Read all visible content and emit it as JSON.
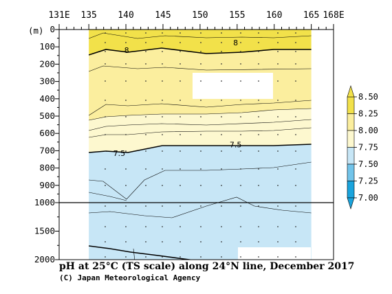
{
  "chart_data": {
    "type": "contour",
    "title": "pH at 25°C (TS scale) along 24°N line, December 2017",
    "credit": "(C) Japan Meteorological Agency",
    "y_unit": "(m)",
    "x_axis": {
      "lon_min": 131,
      "lon_max": 168,
      "ticks": [
        {
          "lon": 131,
          "label": "131E"
        },
        {
          "lon": 135,
          "label": "135"
        },
        {
          "lon": 140,
          "label": "140"
        },
        {
          "lon": 145,
          "label": "145"
        },
        {
          "lon": 150,
          "label": "150"
        },
        {
          "lon": 155,
          "label": "155"
        },
        {
          "lon": 160,
          "label": "160"
        },
        {
          "lon": 165,
          "label": "165"
        },
        {
          "lon": 168,
          "label": "168E"
        }
      ]
    },
    "y_axis": {
      "range": [
        0,
        2000
      ],
      "break_depth": 1000,
      "ticks": [
        {
          "depth": 0,
          "label": "0"
        },
        {
          "depth": 100,
          "label": "100"
        },
        {
          "depth": 200,
          "label": "200"
        },
        {
          "depth": 300,
          "label": "300"
        },
        {
          "depth": 400,
          "label": "400"
        },
        {
          "depth": 500,
          "label": "500"
        },
        {
          "depth": 600,
          "label": "600"
        },
        {
          "depth": 700,
          "label": "700"
        },
        {
          "depth": 800,
          "label": "800"
        },
        {
          "depth": 900,
          "label": "900"
        },
        {
          "depth": 1000,
          "label": "1000"
        },
        {
          "depth": 1500,
          "label": "1500"
        },
        {
          "depth": 2000,
          "label": "2000"
        }
      ]
    },
    "data_lon_range": [
      135,
      165
    ],
    "colorbar": {
      "levels": [
        {
          "value": 8.5,
          "label": "8.50"
        },
        {
          "value": 8.25,
          "label": "8.25"
        },
        {
          "value": 8.0,
          "label": "8.00"
        },
        {
          "value": 7.75,
          "label": "7.75"
        },
        {
          "value": 7.5,
          "label": "7.50"
        },
        {
          "value": 7.25,
          "label": "7.25"
        },
        {
          "value": 7.0,
          "label": "7.00"
        }
      ],
      "bands": [
        {
          "from": 8.25,
          "to": 8.5,
          "color": "#f2e14a"
        },
        {
          "from": 8.0,
          "to": 8.25,
          "color": "#fbee9e"
        },
        {
          "from": 7.75,
          "to": 8.0,
          "color": "#fdf8cf"
        },
        {
          "from": 7.5,
          "to": 7.75,
          "color": "#c7e6f6"
        },
        {
          "from": 7.25,
          "to": 7.5,
          "color": "#72c4ea"
        },
        {
          "from": 7.0,
          "to": 7.25,
          "color": "#1aa4dd"
        }
      ]
    },
    "contour_labels": [
      {
        "lon": 140.1,
        "depth": 120,
        "text": "8"
      },
      {
        "lon": 154.8,
        "depth": 75,
        "text": "8"
      },
      {
        "lon": 139.1,
        "depth": 715,
        "text": "7.5"
      },
      {
        "lon": 154.8,
        "depth": 665,
        "text": "7.5"
      }
    ]
  }
}
